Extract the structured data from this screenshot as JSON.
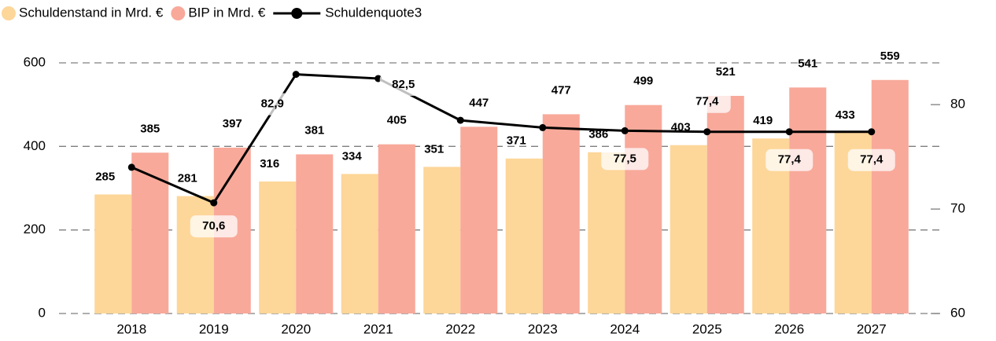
{
  "chart_data": {
    "type": "bar",
    "categories": [
      "2018",
      "2019",
      "2020",
      "2021",
      "2022",
      "2023",
      "2024",
      "2025",
      "2026",
      "2027"
    ],
    "series": [
      {
        "name": "Schuldenstand in Mrd. €",
        "color": "#fdd699",
        "values": [
          285,
          281,
          316,
          334,
          351,
          371,
          386,
          403,
          419,
          433
        ]
      },
      {
        "name": "BIP in Mrd. €",
        "color": "#f8a99a",
        "values": [
          385,
          397,
          381,
          405,
          447,
          477,
          499,
          521,
          541,
          559
        ]
      },
      {
        "name": "Schuldenquote3",
        "color": "#000000",
        "type": "line",
        "axis": "y2",
        "values": [
          74.0,
          70.6,
          82.9,
          82.5,
          78.5,
          77.8,
          77.5,
          77.4,
          77.4,
          77.4
        ],
        "value_labels": [
          null,
          "70,6",
          "82,9",
          "82,5",
          null,
          null,
          "77,5",
          "77,4",
          "77,4",
          "77,4"
        ]
      }
    ],
    "ylim": [
      0,
      600
    ],
    "yticks": [
      0,
      200,
      400,
      600
    ],
    "y2lim": [
      60,
      84
    ],
    "y2ticks": [
      60,
      70,
      80
    ],
    "grid": true,
    "legend": "top-left"
  }
}
